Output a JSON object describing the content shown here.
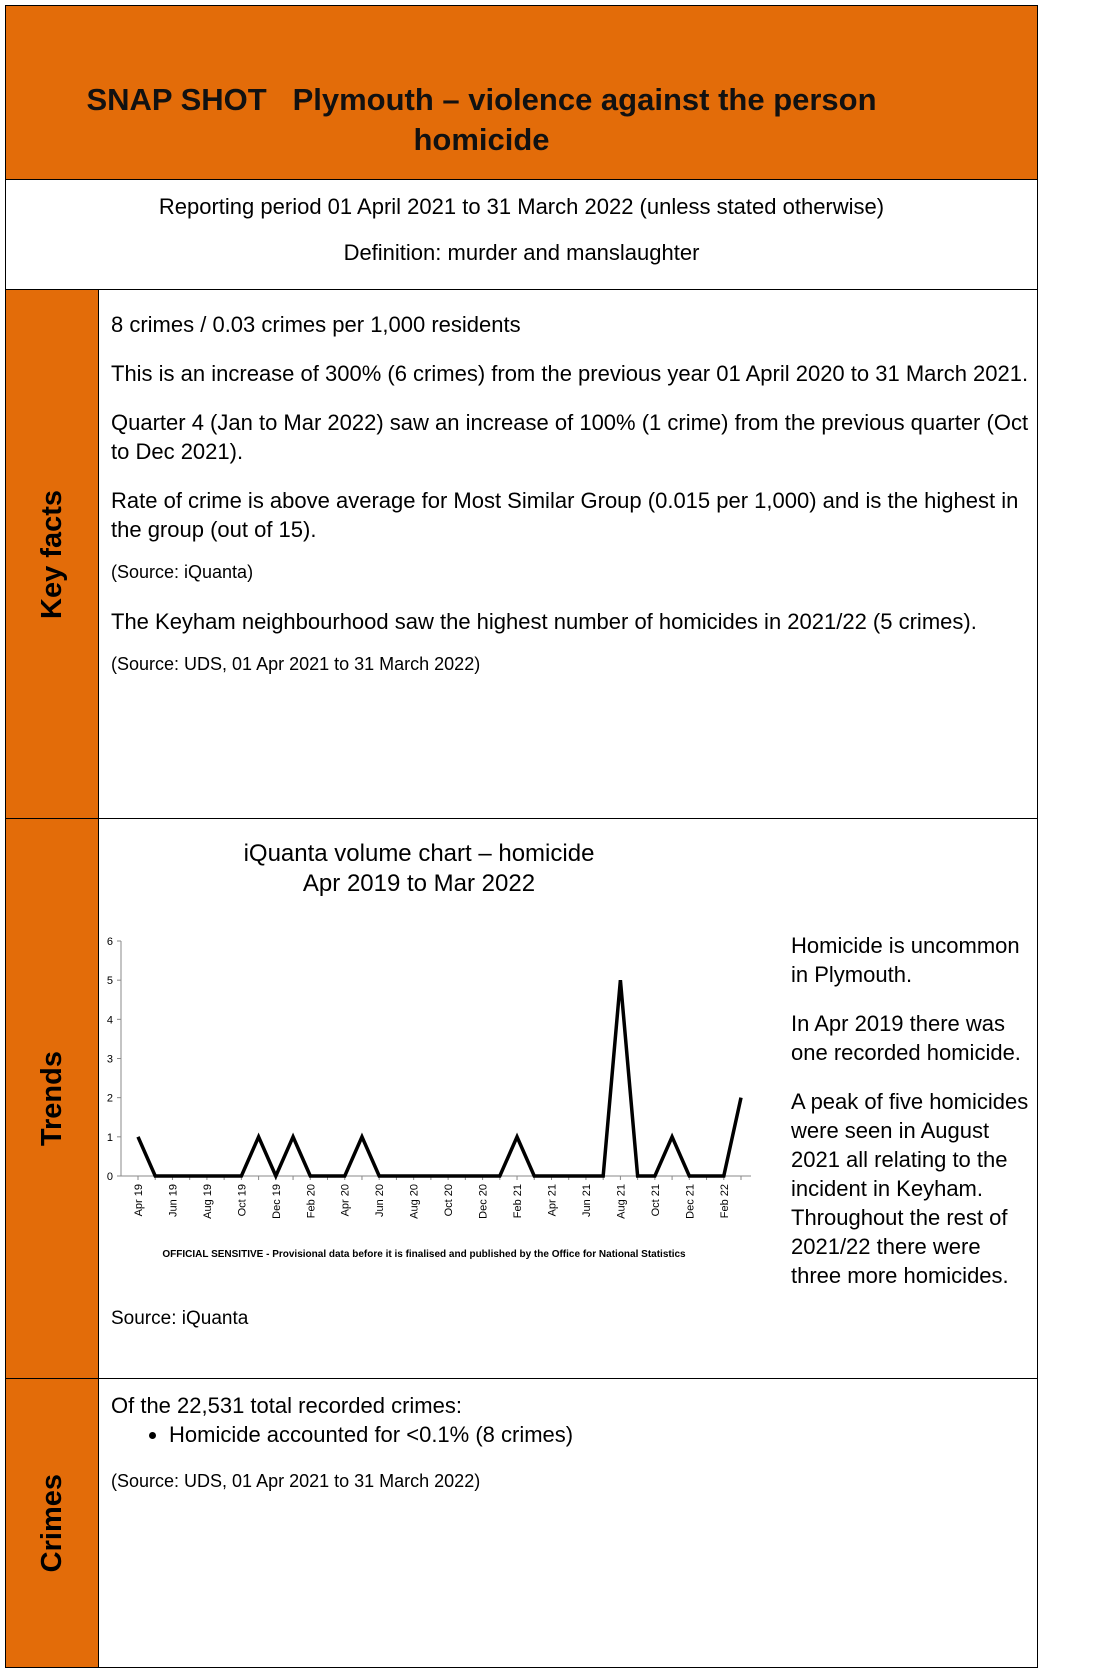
{
  "header": {
    "title": "SNAP SHOT   Plymouth – violence against the person homicide"
  },
  "intro": {
    "period": "Reporting period 01 April 2021 to 31 March 2022 (unless stated otherwise)",
    "definition": "Definition: murder and manslaughter"
  },
  "key_facts": {
    "label": "Key facts",
    "paragraphs": [
      "8 crimes / 0.03 crimes per 1,000 residents",
      "This is an increase of 300% (6 crimes) from the previous year 01 April 2020 to 31 March 2021.",
      "Quarter 4 (Jan to Mar 2022) saw an increase of 100% (1 crime) from the previous quarter (Oct to Dec 2021).",
      "Rate of crime is above average for Most Similar Group (0.015 per 1,000) and is the highest in the group (out of 15).",
      "(Source: iQuanta)",
      "The Keyham neighbourhood saw the highest number of homicides in 2021/22 (5 crimes).",
      "(Source: UDS, 01 Apr 2021 to 31 March 2022)"
    ]
  },
  "trends": {
    "label": "Trends",
    "paragraphs": [
      "Homicide is uncommon in Plymouth.",
      "In Apr 2019 there was one recorded homicide.",
      "A peak of five homicides were seen in August 2021 all relating to the incident in Keyham. Throughout the rest of 2021/22 there were three more homicides.",
      "Source: iQuanta"
    ]
  },
  "crimes": {
    "label": "Crimes",
    "intro": "Of the 22,531 total recorded crimes:",
    "bullets": [
      "Homicide accounted for <0.1% (8 crimes)"
    ],
    "source": "(Source: UDS, 01 Apr 2021 to 31 March 2022)"
  },
  "chart_data": {
    "type": "line",
    "title": [
      "iQuanta volume chart – homicide",
      "Apr 2019 to Mar 2022"
    ],
    "footnote": "OFFICIAL SENSITIVE - Provisional data before it is finalised and published by the Office for National Statistics",
    "categories": [
      "Apr 19",
      null,
      "Jun 19",
      null,
      "Aug 19",
      null,
      "Oct 19",
      null,
      "Dec 19",
      null,
      "Feb 20",
      null,
      "Apr 20",
      null,
      "Jun 20",
      null,
      "Aug 20",
      null,
      "Oct 20",
      null,
      "Dec 20",
      null,
      "Feb 21",
      null,
      "Apr 21",
      null,
      "Jun 21",
      null,
      "Aug 21",
      null,
      "Oct 21",
      null,
      "Dec 21",
      null,
      "Feb 22",
      null
    ],
    "values": [
      1,
      0,
      0,
      0,
      0,
      0,
      0,
      1,
      0,
      1,
      0,
      0,
      0,
      1,
      0,
      0,
      0,
      0,
      0,
      0,
      0,
      0,
      1,
      0,
      0,
      0,
      0,
      0,
      5,
      0,
      0,
      1,
      0,
      0,
      0,
      2
    ],
    "color": "#000000",
    "ylim": [
      0,
      6
    ],
    "yticks": [
      0,
      1,
      2,
      3,
      4,
      5,
      6
    ]
  }
}
